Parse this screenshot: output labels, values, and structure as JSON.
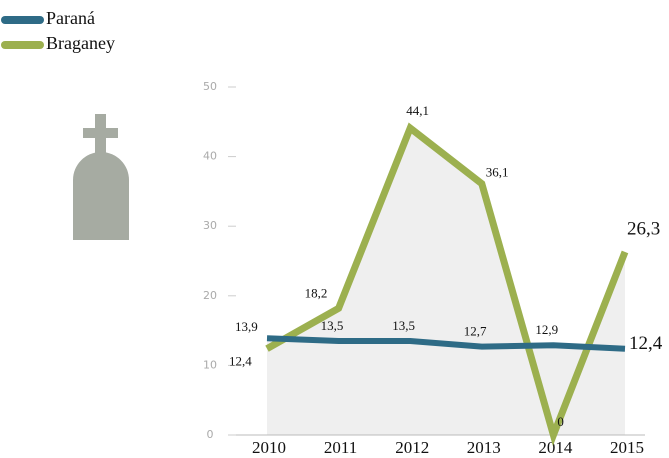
{
  "chart_data": {
    "type": "line",
    "categories": [
      "2010",
      "2011",
      "2012",
      "2013",
      "2014",
      "2015"
    ],
    "series": [
      {
        "name": "Paraná",
        "color": "#2e6b86",
        "values": [
          13.9,
          13.5,
          13.5,
          12.7,
          12.9,
          12.4
        ],
        "value_labels": [
          "13,9",
          "13,5",
          "13,5",
          "12,7",
          "12,9",
          "12,4"
        ]
      },
      {
        "name": "Braganey",
        "color": "#9cb04f",
        "values": [
          12.4,
          18.2,
          44.1,
          36.1,
          0,
          26.3
        ],
        "value_labels": [
          "12,4",
          "18,2",
          "44,1",
          "36,1",
          "0",
          "26,3"
        ]
      }
    ],
    "ylim": [
      0,
      50
    ],
    "yticks": [
      0,
      10,
      20,
      30,
      40,
      50
    ],
    "legend": "top-left",
    "area_color": "#efefef"
  }
}
